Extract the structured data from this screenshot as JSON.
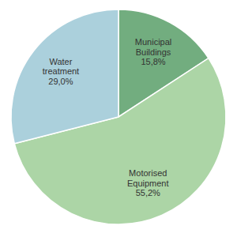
{
  "chart_data": {
    "type": "pie",
    "categories": [
      "Municipal Buildings",
      "Motorised Equipment",
      "Water treatment"
    ],
    "values": [
      15.8,
      55.2,
      29.0
    ],
    "value_labels": [
      "15,8%",
      "55,2%",
      "29,0%"
    ],
    "colors": [
      "#72ad7f",
      "#acd5a6",
      "#abd0dc"
    ],
    "data_labels": true
  }
}
